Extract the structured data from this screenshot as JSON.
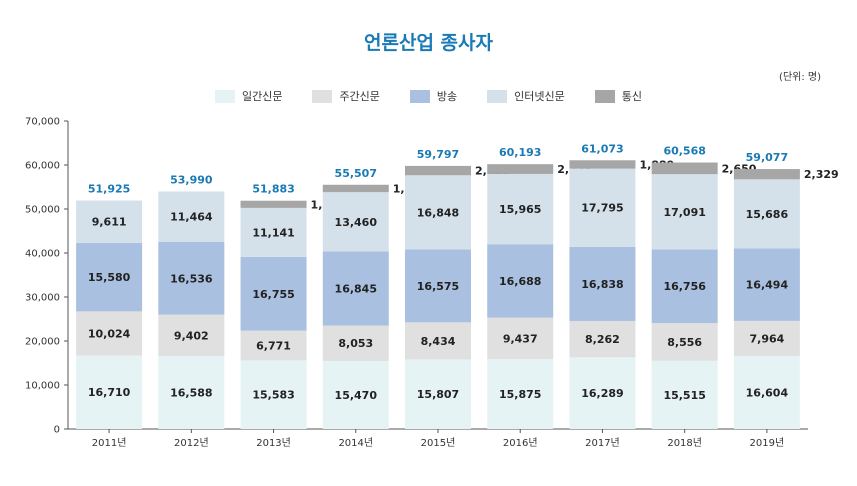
{
  "chart_data": {
    "type": "bar",
    "stacked": true,
    "title": "언론산업 종사자",
    "unit_note": "(단위: 명)",
    "categories": [
      "2011년",
      "2012년",
      "2013년",
      "2014년",
      "2015년",
      "2016년",
      "2017년",
      "2018년",
      "2019년"
    ],
    "series": [
      {
        "name": "일간신문",
        "color": "#e6f3f5",
        "values": [
          16710,
          16588,
          15583,
          15470,
          15807,
          15875,
          16289,
          15515,
          16604
        ]
      },
      {
        "name": "주간신문",
        "color": "#e0e0e0",
        "values": [
          10024,
          9402,
          6771,
          8053,
          8434,
          9437,
          8262,
          8556,
          7964
        ]
      },
      {
        "name": "방송",
        "color": "#a9c0e0",
        "values": [
          15580,
          16536,
          16755,
          16845,
          16575,
          16688,
          16838,
          16756,
          16494
        ]
      },
      {
        "name": "인터넷신문",
        "color": "#d4e1ea",
        "values": [
          9611,
          11464,
          11141,
          13460,
          16848,
          15965,
          17795,
          17091,
          15686
        ]
      },
      {
        "name": "통신",
        "color": "#a6a6a6",
        "values": [
          0,
          0,
          1633,
          1679,
          2133,
          2228,
          1889,
          2650,
          2329
        ]
      }
    ],
    "totals": [
      51925,
      53990,
      51883,
      55507,
      59797,
      60193,
      61073,
      60568,
      59077
    ],
    "ylim": [
      0,
      70000
    ],
    "yticks": [
      0,
      10000,
      20000,
      30000,
      40000,
      50000,
      60000,
      70000
    ],
    "ytick_labels": [
      "0",
      "10,000",
      "20,000",
      "30,000",
      "40,000",
      "50,000",
      "60,000",
      "70,000"
    ],
    "legend_position": "top-center",
    "total_color": "#1a7ab5"
  }
}
